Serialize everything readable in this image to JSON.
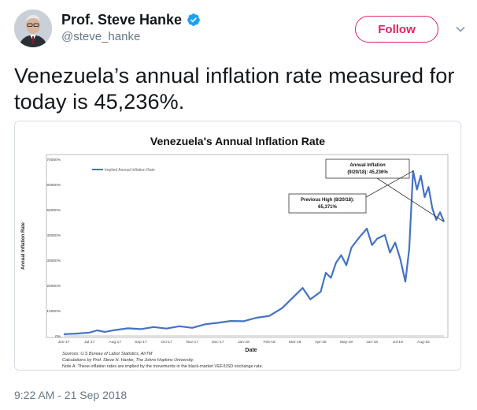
{
  "author": {
    "display_name": "Prof. Steve Hanke",
    "handle": "@steve_hanke",
    "verified": true
  },
  "follow_label": "Follow",
  "tweet_text": "Venezuela’s annual inflation rate measured for today is 45,236%.",
  "timestamp": "9:22 AM - 21 Sep 2018",
  "colors": {
    "follow": "#e0245e",
    "verified": "#1da1f2",
    "series": "#4472c4"
  },
  "icons": [
    "verified-icon",
    "caret-down-icon"
  ],
  "chart_data": {
    "type": "line",
    "title": "Venezuela's Annual Inflation Rate",
    "xlabel": "Date",
    "ylabel": "Annual Inflation Rate",
    "ylim": [
      0,
      70000
    ],
    "yticks": [
      "0%",
      "10000%",
      "20000%",
      "30000%",
      "40000%",
      "50000%",
      "60000%",
      "70000%"
    ],
    "xticks": [
      "Jun-17",
      "Jul-17",
      "Aug-17",
      "Sep-17",
      "Oct-17",
      "Nov-17",
      "Dec-17",
      "Jan-18",
      "Feb-18",
      "Mar-18",
      "Apr-18",
      "May-18",
      "Jun-18",
      "Jul-18",
      "Aug-18"
    ],
    "legend": "Implied Annual Inflation Rate",
    "legend_position": "top-left",
    "grid": false,
    "series": [
      {
        "name": "Implied Annual Inflation Rate",
        "x": [
          0,
          0.5,
          1,
          1.3,
          1.6,
          2,
          2.5,
          3,
          3.5,
          4,
          4.5,
          5,
          5.5,
          6,
          6.5,
          7,
          7.5,
          8,
          8.5,
          9,
          9.3,
          9.6,
          10,
          10.2,
          10.4,
          10.6,
          10.8,
          11,
          11.2,
          11.5,
          11.8,
          12,
          12.2,
          12.5,
          12.7,
          12.9,
          13.1,
          13.3,
          13.45,
          13.6,
          13.75,
          13.9,
          14.05,
          14.2,
          14.35,
          14.5,
          14.65,
          14.8
        ],
        "values": [
          700,
          900,
          1300,
          2200,
          1600,
          2300,
          3000,
          2700,
          3500,
          2900,
          3800,
          3200,
          4600,
          5200,
          5900,
          5800,
          7200,
          7900,
          11000,
          16000,
          19000,
          14500,
          17500,
          25000,
          23000,
          29000,
          32000,
          28000,
          35000,
          39000,
          42500,
          36000,
          38500,
          40000,
          33000,
          37000,
          30500,
          21500,
          34500,
          65371,
          58000,
          63500,
          55000,
          59000,
          50500,
          46000,
          49000,
          45236
        ]
      }
    ],
    "annotations": [
      {
        "text": "Annual Inflation",
        "text2": "(9/20/18): 45,236%"
      },
      {
        "text": "Previous High (8/20/18):",
        "text2": "65,371%"
      }
    ],
    "notes": [
      "Sources: U.S Bureau of Labor Statistics, AirTM",
      "Calculations by Prof. Steve H. Hanke, The Johns Hopkins University.",
      "Note A: These inflation rates are implied by the movements in the black-market VEF/USD exchange rate."
    ]
  }
}
